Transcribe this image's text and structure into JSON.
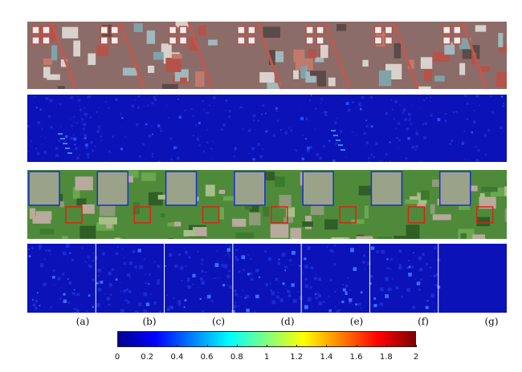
{
  "panels": [
    "(a)",
    "(b)",
    "(c)",
    "(d)",
    "(e)",
    "(f)",
    "(g)"
  ],
  "colorbar": {
    "ticks": [
      "0",
      "0.2",
      "0.4",
      "0.6",
      "0.8",
      "1",
      "1.2",
      "1.4",
      "1.6",
      "1.8",
      "2"
    ],
    "min": 0,
    "max": 2,
    "colormap": "jet"
  },
  "colors": {
    "urban_red": "#b5524a",
    "urban_cyan": "#7fa3a8",
    "veg_green": "#4f8a3a",
    "error_blue": "#0a12b8",
    "highlight_red": "#e0201b",
    "highlight_blue": "#1a2cd6"
  }
}
